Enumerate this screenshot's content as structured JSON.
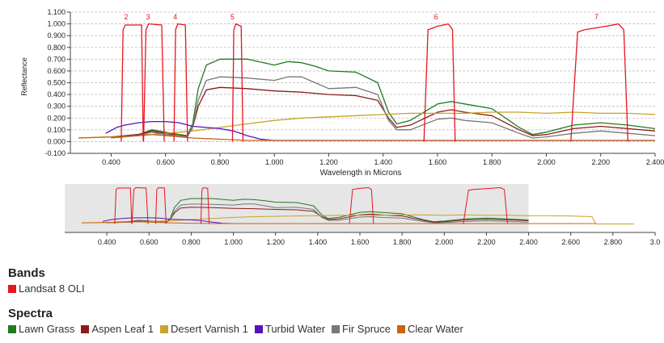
{
  "chart_data": {
    "type": "line",
    "xlabel": "Wavelength in Microns",
    "ylabel": "Reflectance",
    "xlim": [
      0.25,
      2.4
    ],
    "ylim": [
      -0.1,
      1.1
    ],
    "grid": true,
    "x_ticks": [
      {
        "v": 0.4,
        "label": "0.400"
      },
      {
        "v": 0.6,
        "label": "0.600"
      },
      {
        "v": 0.8,
        "label": "0.800"
      },
      {
        "v": 1.0,
        "label": "1.000"
      },
      {
        "v": 1.2,
        "label": "1.200"
      },
      {
        "v": 1.4,
        "label": "1.400"
      },
      {
        "v": 1.6,
        "label": "1.600"
      },
      {
        "v": 1.8,
        "label": "1.800"
      },
      {
        "v": 2.0,
        "label": "2.000"
      },
      {
        "v": 2.2,
        "label": "2.200"
      },
      {
        "v": 2.4,
        "label": "2.400"
      }
    ],
    "y_ticks": [
      {
        "v": 1.1,
        "label": "1.100"
      },
      {
        "v": 1.0,
        "label": "1.000"
      },
      {
        "v": 0.9,
        "label": "0.900"
      },
      {
        "v": 0.8,
        "label": "0.800"
      },
      {
        "v": 0.7,
        "label": "0.700"
      },
      {
        "v": 0.6,
        "label": "0.600"
      },
      {
        "v": 0.5,
        "label": "0.500"
      },
      {
        "v": 0.4,
        "label": "0.400"
      },
      {
        "v": 0.3,
        "label": "0.300"
      },
      {
        "v": 0.2,
        "label": "0.200"
      },
      {
        "v": 0.1,
        "label": "0.100"
      },
      {
        "v": 0.0,
        "label": "0.000"
      },
      {
        "v": -0.1,
        "label": "-0.100"
      }
    ],
    "bands": [
      {
        "label": "2",
        "x": [
          0.437,
          0.444,
          0.452,
          0.512,
          0.518
        ],
        "y": [
          0.0,
          0.95,
          0.99,
          0.99,
          0.0
        ]
      },
      {
        "label": "3",
        "x": [
          0.519,
          0.528,
          0.538,
          0.586,
          0.595
        ],
        "y": [
          0.0,
          0.95,
          1.0,
          0.99,
          0.0
        ]
      },
      {
        "label": "4",
        "x": [
          0.631,
          0.637,
          0.645,
          0.673,
          0.681
        ],
        "y": [
          0.0,
          0.95,
          1.0,
          0.99,
          0.0
        ]
      },
      {
        "label": "5",
        "x": [
          0.846,
          0.851,
          0.858,
          0.878,
          0.885
        ],
        "y": [
          0.0,
          0.95,
          1.0,
          0.98,
          0.0
        ]
      },
      {
        "label": "6",
        "x": [
          1.55,
          1.565,
          1.6,
          1.64,
          1.655,
          1.665
        ],
        "y": [
          0.0,
          0.95,
          0.98,
          1.0,
          0.95,
          0.0
        ]
      },
      {
        "label": "7",
        "x": [
          2.09,
          2.115,
          2.14,
          2.22,
          2.265,
          2.285,
          2.3
        ],
        "y": [
          0.0,
          0.93,
          0.95,
          0.98,
          1.0,
          0.95,
          0.0
        ]
      }
    ],
    "series": [
      {
        "name": "Lawn Grass",
        "color": "#1f7a1f",
        "x": [
          0.4,
          0.45,
          0.5,
          0.55,
          0.6,
          0.65,
          0.68,
          0.7,
          0.72,
          0.75,
          0.8,
          0.9,
          1.0,
          1.05,
          1.1,
          1.15,
          1.2,
          1.3,
          1.38,
          1.42,
          1.45,
          1.5,
          1.6,
          1.65,
          1.7,
          1.8,
          1.9,
          1.95,
          2.0,
          2.1,
          2.2,
          2.3,
          2.4
        ],
        "y": [
          0.04,
          0.05,
          0.06,
          0.1,
          0.08,
          0.06,
          0.05,
          0.15,
          0.45,
          0.65,
          0.7,
          0.7,
          0.65,
          0.68,
          0.67,
          0.64,
          0.6,
          0.59,
          0.5,
          0.25,
          0.15,
          0.18,
          0.32,
          0.34,
          0.32,
          0.28,
          0.12,
          0.06,
          0.08,
          0.14,
          0.16,
          0.14,
          0.11
        ]
      },
      {
        "name": "Aspen Leaf 1",
        "color": "#8b1a1a",
        "x": [
          0.4,
          0.45,
          0.5,
          0.55,
          0.6,
          0.65,
          0.68,
          0.7,
          0.72,
          0.75,
          0.8,
          0.9,
          1.0,
          1.1,
          1.2,
          1.3,
          1.38,
          1.42,
          1.45,
          1.5,
          1.6,
          1.65,
          1.7,
          1.8,
          1.9,
          1.95,
          2.0,
          2.1,
          2.2,
          2.3,
          2.4
        ],
        "y": [
          0.04,
          0.05,
          0.06,
          0.09,
          0.07,
          0.05,
          0.05,
          0.12,
          0.3,
          0.44,
          0.46,
          0.45,
          0.43,
          0.42,
          0.4,
          0.39,
          0.35,
          0.2,
          0.12,
          0.14,
          0.25,
          0.27,
          0.25,
          0.22,
          0.1,
          0.05,
          0.06,
          0.11,
          0.13,
          0.11,
          0.09
        ]
      },
      {
        "name": "Desert Varnish 1",
        "color": "#c9a227",
        "x": [
          0.28,
          0.4,
          0.5,
          0.6,
          0.7,
          0.8,
          0.9,
          1.0,
          1.1,
          1.2,
          1.3,
          1.4,
          1.5,
          1.6,
          1.7,
          1.8,
          1.9,
          2.0,
          2.1,
          2.2,
          2.3,
          2.4
        ],
        "y": [
          0.03,
          0.04,
          0.05,
          0.07,
          0.09,
          0.12,
          0.15,
          0.18,
          0.2,
          0.21,
          0.22,
          0.23,
          0.24,
          0.24,
          0.24,
          0.25,
          0.25,
          0.24,
          0.25,
          0.24,
          0.24,
          0.23
        ]
      },
      {
        "name": "Turbid Water",
        "color": "#5a0fbf",
        "x": [
          0.38,
          0.42,
          0.45,
          0.5,
          0.55,
          0.6,
          0.65,
          0.7,
          0.75,
          0.8,
          0.85,
          0.9,
          0.95,
          1.0,
          1.2,
          1.4,
          1.6,
          1.8,
          2.0,
          2.2,
          2.4
        ],
        "y": [
          0.07,
          0.12,
          0.14,
          0.16,
          0.17,
          0.17,
          0.16,
          0.13,
          0.12,
          0.11,
          0.09,
          0.05,
          0.02,
          0.01,
          0.01,
          0.01,
          0.01,
          0.01,
          0.01,
          0.01,
          0.01
        ]
      },
      {
        "name": "Fir Spruce",
        "color": "#777777",
        "x": [
          0.4,
          0.45,
          0.5,
          0.55,
          0.6,
          0.65,
          0.68,
          0.7,
          0.72,
          0.75,
          0.8,
          0.9,
          1.0,
          1.05,
          1.1,
          1.2,
          1.3,
          1.38,
          1.42,
          1.45,
          1.5,
          1.6,
          1.65,
          1.7,
          1.8,
          1.9,
          1.95,
          2.0,
          2.1,
          2.2,
          2.3,
          2.4
        ],
        "y": [
          0.03,
          0.04,
          0.05,
          0.08,
          0.06,
          0.05,
          0.04,
          0.12,
          0.35,
          0.52,
          0.55,
          0.54,
          0.52,
          0.55,
          0.55,
          0.45,
          0.46,
          0.4,
          0.18,
          0.1,
          0.1,
          0.19,
          0.2,
          0.18,
          0.16,
          0.07,
          0.03,
          0.04,
          0.07,
          0.09,
          0.07,
          0.05
        ]
      },
      {
        "name": "Clear Water",
        "color": "#c86414",
        "x": [
          0.28,
          0.4,
          0.5,
          0.55,
          0.6,
          0.7,
          0.8,
          0.9,
          1.0,
          1.2,
          1.4,
          1.6,
          1.8,
          2.0,
          2.2,
          2.4
        ],
        "y": [
          0.03,
          0.04,
          0.05,
          0.06,
          0.05,
          0.03,
          0.02,
          0.01,
          0.01,
          0.01,
          0.01,
          0.01,
          0.01,
          0.01,
          0.01,
          0.01
        ]
      }
    ],
    "overview": {
      "xlim": [
        0.2,
        3.0
      ],
      "selected_range": [
        0.2,
        2.4
      ],
      "x_ticks": [
        {
          "v": 0.4,
          "label": "0.400"
        },
        {
          "v": 0.6,
          "label": "0.600"
        },
        {
          "v": 0.8,
          "label": "0.800"
        },
        {
          "v": 1.0,
          "label": "1.000"
        },
        {
          "v": 1.2,
          "label": "1.200"
        },
        {
          "v": 1.4,
          "label": "1.400"
        },
        {
          "v": 1.6,
          "label": "1.600"
        },
        {
          "v": 1.8,
          "label": "1.800"
        },
        {
          "v": 2.0,
          "label": "2.000"
        },
        {
          "v": 2.2,
          "label": "2.200"
        },
        {
          "v": 2.4,
          "label": "2.400"
        },
        {
          "v": 2.6,
          "label": "2.600"
        },
        {
          "v": 2.8,
          "label": "2.800"
        },
        {
          "v": 3.0,
          "label": "3.0"
        }
      ],
      "desert_varnish_extension": {
        "x": [
          2.4,
          2.5,
          2.6,
          2.7,
          2.72,
          2.9
        ],
        "y": [
          0.23,
          0.23,
          0.22,
          0.2,
          0.0,
          0.0
        ]
      },
      "clear_water_extension": {
        "x": [
          2.4,
          2.72
        ],
        "y": [
          0.01,
          0.01
        ]
      }
    }
  },
  "legend": {
    "bands_title": "Bands",
    "bands_items": [
      {
        "label": "Landsat 8 OLI",
        "color": "#e8141e"
      }
    ],
    "spectra_title": "Spectra",
    "spectra_items": [
      {
        "label": "Lawn Grass",
        "color": "#1f7a1f"
      },
      {
        "label": "Aspen Leaf 1",
        "color": "#8b1a1a"
      },
      {
        "label": "Desert Varnish 1",
        "color": "#c9a227"
      },
      {
        "label": "Turbid Water",
        "color": "#5a0fbf"
      },
      {
        "label": "Fir Spruce",
        "color": "#777777"
      },
      {
        "label": "Clear Water",
        "color": "#c86414"
      }
    ]
  }
}
